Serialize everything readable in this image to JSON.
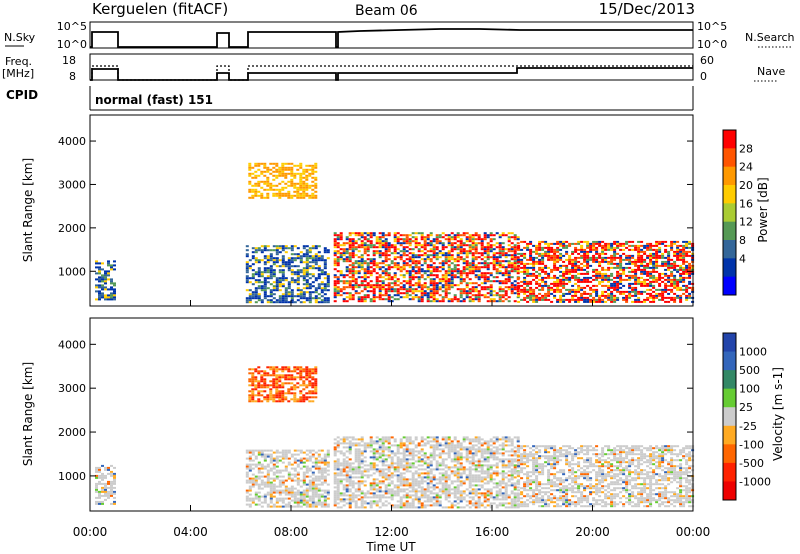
{
  "header": {
    "station": "Kerguelen (fitACF)",
    "beam": "Beam 06",
    "date": "15/Dec/2013"
  },
  "strips": {
    "nsky_label": "N.Sky",
    "nsky_ticks": [
      "10^5",
      "10^0"
    ],
    "nsearch_label": "N.Search",
    "nsearch_ticks": [
      "10^5",
      "10^0"
    ],
    "freq_label": "Freq.",
    "freq_unit": "[MHz]",
    "freq_ticks": [
      "18",
      "8"
    ],
    "nave_label": "Nave",
    "nave_ticks": [
      "60",
      "0"
    ],
    "cpid_label": "CPID",
    "cpid_value": "normal (fast) 151"
  },
  "chart_data": [
    {
      "type": "heatmap",
      "title": "",
      "xlabel": "Time UT",
      "ylabel": "Slant Range [km]",
      "x_ticks": [
        "00:00",
        "04:00",
        "08:00",
        "12:00",
        "16:00",
        "20:00",
        "00:00"
      ],
      "y_ticks": [
        1000,
        2000,
        3000,
        4000
      ],
      "xlim_hours": [
        0,
        24
      ],
      "ylim_km": [
        200,
        4600
      ],
      "colorbar": {
        "label": "Power [dB]",
        "ticks": [
          "28",
          "24",
          "20",
          "16",
          "12",
          "8",
          "4"
        ],
        "colors": [
          "#ff0000",
          "#ff5500",
          "#ff9900",
          "#ffcc00",
          "#aacc33",
          "#559955",
          "#336699",
          "#0033aa",
          "#0000ff"
        ]
      },
      "echo_regions": [
        {
          "t_start": 0.2,
          "t_end": 1.0,
          "r_min": 350,
          "r_max": 1250,
          "power": "4-12"
        },
        {
          "t_start": 6.2,
          "t_end": 9.5,
          "r_min": 300,
          "r_max": 1600,
          "power": "4-12"
        },
        {
          "t_start": 6.3,
          "t_end": 9.0,
          "r_min": 2700,
          "r_max": 3500,
          "power": "12-20"
        },
        {
          "t_start": 9.7,
          "t_end": 17.0,
          "r_min": 300,
          "r_max": 1900,
          "power": "8-28"
        },
        {
          "t_start": 17.0,
          "t_end": 24.0,
          "r_min": 300,
          "r_max": 1700,
          "power": "4-28"
        }
      ]
    },
    {
      "type": "heatmap",
      "title": "",
      "xlabel": "Time UT",
      "ylabel": "Slant Range [km]",
      "x_ticks": [
        "00:00",
        "04:00",
        "08:00",
        "12:00",
        "16:00",
        "20:00",
        "00:00"
      ],
      "y_ticks": [
        1000,
        2000,
        3000,
        4000
      ],
      "xlim_hours": [
        0,
        24
      ],
      "ylim_km": [
        200,
        4600
      ],
      "colorbar": {
        "label": "Velocity [m s-1]",
        "ticks": [
          "1000",
          "500",
          "100",
          "25",
          "-25",
          "-100",
          "-500",
          "-1000"
        ],
        "colors": [
          "#2244aa",
          "#3366bb",
          "#338866",
          "#66cc33",
          "#cccccc",
          "#ffaa22",
          "#ff6600",
          "#ff2200",
          "#ee0000"
        ]
      },
      "echo_regions": [
        {
          "t_start": 0.2,
          "t_end": 1.0,
          "r_min": 350,
          "r_max": 1250,
          "velocity": "-25 to 25"
        },
        {
          "t_start": 6.2,
          "t_end": 9.5,
          "r_min": 300,
          "r_max": 1600,
          "velocity": "-25 to 25"
        },
        {
          "t_start": 6.3,
          "t_end": 9.0,
          "r_min": 2700,
          "r_max": 3500,
          "velocity": "-100 to -1000"
        },
        {
          "t_start": 9.7,
          "t_end": 17.0,
          "r_min": 300,
          "r_max": 1900,
          "velocity": "-25 to 25"
        },
        {
          "t_start": 17.0,
          "t_end": 24.0,
          "r_min": 300,
          "r_max": 1700,
          "velocity": "-25 to 25"
        }
      ]
    }
  ]
}
